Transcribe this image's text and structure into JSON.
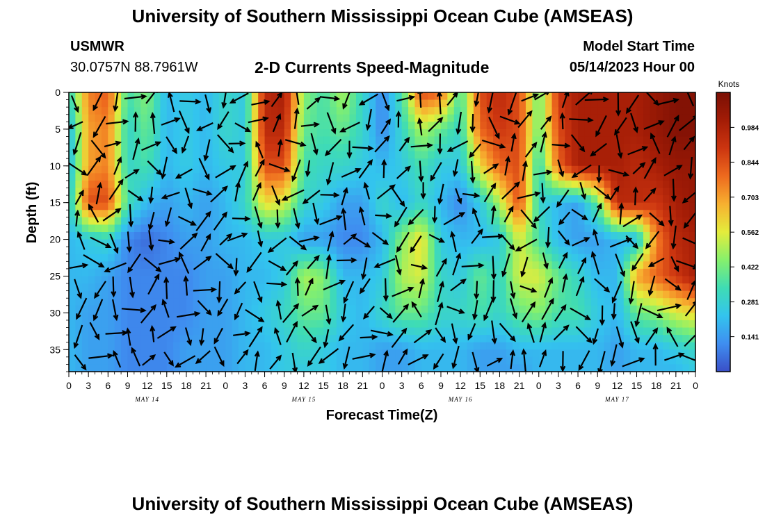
{
  "header": {
    "title": "University of Southern Mississippi Ocean Cube (AMSEAS)",
    "station": "USMWR",
    "coords": "30.0757N  88.7961W",
    "subtitle": "2-D Currents Speed-Magnitude",
    "model_start_label": "Model Start Time",
    "model_start_value": "05/14/2023 Hour 00"
  },
  "footer": {
    "title_repeat": "University of Southern Mississippi Ocean Cube (AMSEAS)"
  },
  "colors": {
    "scale": [
      "#3a4fc8",
      "#3f8ef0",
      "#33c4ee",
      "#3fdcb4",
      "#86f06c",
      "#e4ec3c",
      "#f7b030",
      "#ee6a1e",
      "#cc3510",
      "#a31c06",
      "#7a0f04"
    ]
  },
  "chart_data": {
    "type": "heatmap",
    "title": "2-D Currents Speed-Magnitude",
    "xlabel": "Forecast Time(Z)",
    "ylabel": "Depth (ft)",
    "xlim": [
      0,
      96
    ],
    "ylim": [
      0,
      38
    ],
    "x_tick_labels": [
      "0",
      "3",
      "6",
      "9",
      "12",
      "15",
      "18",
      "21",
      "0",
      "3",
      "6",
      "9",
      "12",
      "15",
      "18",
      "21",
      "0",
      "3",
      "6",
      "9",
      "12",
      "15",
      "18",
      "21",
      "0",
      "3",
      "6",
      "9",
      "12",
      "15",
      "18",
      "21",
      "0"
    ],
    "x_tick_hours": [
      0,
      3,
      6,
      9,
      12,
      15,
      18,
      21,
      24,
      27,
      30,
      33,
      36,
      39,
      42,
      45,
      48,
      51,
      54,
      57,
      60,
      63,
      66,
      69,
      72,
      75,
      78,
      81,
      84,
      87,
      90,
      93,
      96
    ],
    "day_labels": [
      {
        "label": "MAY 14",
        "hour": 12
      },
      {
        "label": "MAY 15",
        "hour": 36
      },
      {
        "label": "MAY 16",
        "hour": 60
      },
      {
        "label": "MAY 17",
        "hour": 84
      }
    ],
    "y_ticks": [
      0,
      5,
      10,
      15,
      20,
      25,
      30,
      35
    ],
    "colorbar": {
      "unit": "Knots",
      "range": [
        0.0,
        1.125
      ],
      "tick_values": [
        0.141,
        0.281,
        0.422,
        0.562,
        0.703,
        0.844,
        0.984
      ],
      "tick_labels": [
        "0.141",
        "0.281",
        "0.422",
        "0.562",
        "0.703",
        "0.844",
        "0.984"
      ]
    },
    "hours": [
      0,
      3,
      6,
      9,
      12,
      15,
      18,
      21,
      24,
      27,
      30,
      33,
      36,
      39,
      42,
      45,
      48,
      51,
      54,
      57,
      60,
      63,
      66,
      69,
      72,
      75,
      78,
      81,
      84,
      87,
      90,
      93,
      96
    ],
    "depths": [
      0,
      5,
      10,
      15,
      20,
      25,
      30,
      35,
      38
    ],
    "speed_knots": [
      [
        0.3,
        0.75,
        0.82,
        0.35,
        0.45,
        0.2,
        0.25,
        0.2,
        0.3,
        0.25,
        0.95,
        1.0,
        0.45,
        0.35,
        0.5,
        0.3,
        0.1,
        0.35,
        0.85,
        0.8,
        0.35,
        0.85,
        0.95,
        0.85,
        0.4,
        0.9,
        1.0,
        1.0,
        1.0,
        1.0,
        1.05,
        1.1,
        1.1
      ],
      [
        0.2,
        0.7,
        0.75,
        0.3,
        0.4,
        0.2,
        0.25,
        0.2,
        0.3,
        0.25,
        0.95,
        0.95,
        0.4,
        0.35,
        0.4,
        0.3,
        0.1,
        0.3,
        0.5,
        0.4,
        0.3,
        0.8,
        0.9,
        0.85,
        0.4,
        0.85,
        1.0,
        1.0,
        1.0,
        1.0,
        1.05,
        1.1,
        1.1
      ],
      [
        0.2,
        0.7,
        0.75,
        0.3,
        0.35,
        0.2,
        0.25,
        0.2,
        0.25,
        0.25,
        0.85,
        0.85,
        0.35,
        0.3,
        0.3,
        0.25,
        0.2,
        0.25,
        0.35,
        0.25,
        0.25,
        0.6,
        0.8,
        0.85,
        0.3,
        0.8,
        1.0,
        1.0,
        1.0,
        0.95,
        1.0,
        1.05,
        1.05
      ],
      [
        0.25,
        0.85,
        0.85,
        0.35,
        0.2,
        0.15,
        0.2,
        0.15,
        0.2,
        0.3,
        0.6,
        0.55,
        0.3,
        0.25,
        0.15,
        0.15,
        0.3,
        0.2,
        0.3,
        0.2,
        0.1,
        0.25,
        0.5,
        0.85,
        0.3,
        0.2,
        0.15,
        0.4,
        0.95,
        0.95,
        0.9,
        1.0,
        1.05
      ],
      [
        0.2,
        0.25,
        0.3,
        0.1,
        0.05,
        0.1,
        0.15,
        0.15,
        0.2,
        0.2,
        0.25,
        0.25,
        0.15,
        0.15,
        0.1,
        0.1,
        0.2,
        0.45,
        0.6,
        0.25,
        0.2,
        0.2,
        0.25,
        0.55,
        0.35,
        0.2,
        0.15,
        0.15,
        0.2,
        0.2,
        0.75,
        0.95,
        1.0
      ],
      [
        0.2,
        0.2,
        0.15,
        0.1,
        0.1,
        0.1,
        0.1,
        0.15,
        0.15,
        0.2,
        0.2,
        0.25,
        0.5,
        0.45,
        0.2,
        0.2,
        0.25,
        0.5,
        0.55,
        0.3,
        0.25,
        0.4,
        0.3,
        0.55,
        0.55,
        0.4,
        0.3,
        0.2,
        0.2,
        0.7,
        0.8,
        0.9,
        1.0
      ],
      [
        0.2,
        0.15,
        0.15,
        0.1,
        0.1,
        0.1,
        0.1,
        0.15,
        0.15,
        0.2,
        0.25,
        0.3,
        0.4,
        0.4,
        0.25,
        0.2,
        0.3,
        0.4,
        0.4,
        0.3,
        0.3,
        0.35,
        0.3,
        0.4,
        0.45,
        0.35,
        0.35,
        0.25,
        0.2,
        0.4,
        0.45,
        0.55,
        0.6
      ],
      [
        0.2,
        0.15,
        0.15,
        0.1,
        0.1,
        0.1,
        0.15,
        0.15,
        0.15,
        0.2,
        0.2,
        0.25,
        0.3,
        0.25,
        0.2,
        0.2,
        0.15,
        0.15,
        0.2,
        0.2,
        0.2,
        0.15,
        0.15,
        0.2,
        0.2,
        0.2,
        0.2,
        0.2,
        0.15,
        0.2,
        0.2,
        0.25,
        0.3
      ],
      [
        0.2,
        0.15,
        0.15,
        0.1,
        0.1,
        0.1,
        0.15,
        0.15,
        0.15,
        0.2,
        0.2,
        0.25,
        0.25,
        0.25,
        0.2,
        0.2,
        0.15,
        0.15,
        0.2,
        0.2,
        0.2,
        0.15,
        0.15,
        0.15,
        0.2,
        0.2,
        0.2,
        0.2,
        0.15,
        0.2,
        0.2,
        0.2,
        0.25
      ]
    ]
  }
}
